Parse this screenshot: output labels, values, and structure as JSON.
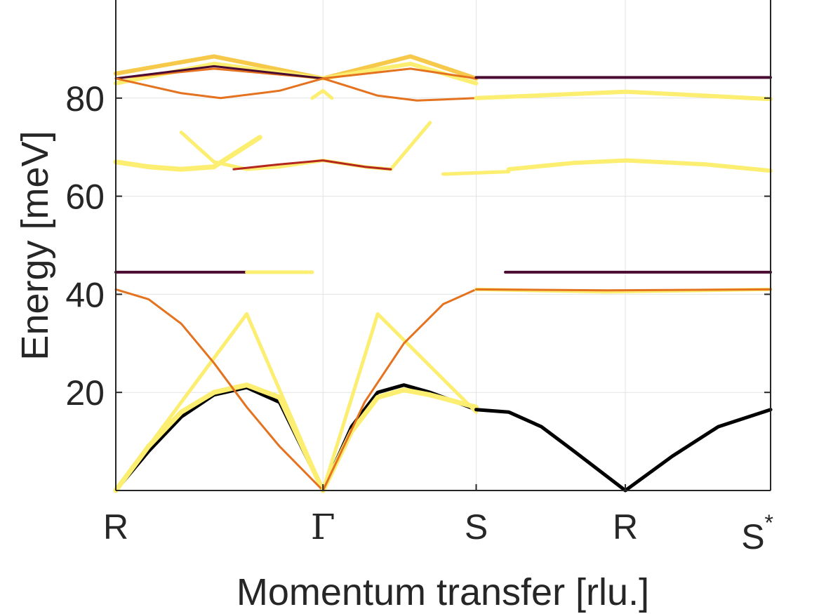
{
  "chart_data": {
    "type": "line",
    "title": "",
    "xlabel": "Momentum transfer [rlu.]",
    "ylabel": "Energy [meV]",
    "xlim": [
      0,
      1
    ],
    "ylim": [
      0,
      100
    ],
    "grid": true,
    "legend": "none",
    "colormap": [
      "#fdfd9a",
      "#f8d040",
      "#f07a1a",
      "#b5261f",
      "#4a0a32",
      "#000000"
    ],
    "x_ticks": [
      {
        "pos": 0,
        "label": "R"
      },
      {
        "pos": 0.3164,
        "label": "Γ"
      },
      {
        "pos": 0.5504,
        "label": "S"
      },
      {
        "pos": 0.7782,
        "label": "R"
      },
      {
        "pos": 1,
        "label": "S*"
      }
    ],
    "y_ticks": [
      {
        "value": 20,
        "label": "20"
      },
      {
        "value": 40,
        "label": "40"
      },
      {
        "value": 60,
        "label": "60"
      },
      {
        "value": 80,
        "label": "80"
      }
    ],
    "series": [
      {
        "color": "#000000",
        "width": 5,
        "x": [
          0,
          0.05,
          0.1,
          0.15,
          0.2,
          0.25,
          0.3164
        ],
        "y": [
          0,
          8,
          15,
          19.5,
          21,
          18,
          0
        ]
      },
      {
        "color": "#fbee70",
        "width": 7,
        "x": [
          0,
          0.05,
          0.1,
          0.15,
          0.2,
          0.25,
          0.3164
        ],
        "y": [
          0,
          9,
          16,
          20,
          21.5,
          19,
          0
        ]
      },
      {
        "color": "#fbee70",
        "width": 5,
        "x": [
          0,
          0.2,
          0.3164
        ],
        "y": [
          0,
          36,
          0
        ]
      },
      {
        "color": "#e4721f",
        "width": 3,
        "x": [
          0,
          0.05,
          0.1,
          0.15,
          0.2,
          0.25,
          0.3164
        ],
        "y": [
          41,
          39,
          34,
          26,
          17,
          9,
          0
        ]
      },
      {
        "color": "#000000",
        "width": 5,
        "x": [
          0.3164,
          0.36,
          0.4,
          0.44,
          0.48,
          0.5504
        ],
        "y": [
          0,
          13,
          20,
          21.5,
          20,
          16.5
        ]
      },
      {
        "color": "#fbee70",
        "width": 7,
        "x": [
          0.3164,
          0.36,
          0.4,
          0.44,
          0.48,
          0.5504
        ],
        "y": [
          0,
          12,
          19,
          20.5,
          19.5,
          17
        ]
      },
      {
        "color": "#fbee70",
        "width": 5,
        "x": [
          0.3164,
          0.4,
          0.5504
        ],
        "y": [
          0,
          36,
          16
        ]
      },
      {
        "color": "#e4721f",
        "width": 3,
        "x": [
          0.3164,
          0.38,
          0.44,
          0.5,
          0.5504
        ],
        "y": [
          0,
          18,
          30,
          38,
          41
        ]
      },
      {
        "color": "#000000",
        "width": 5,
        "x": [
          0.5504,
          0.6,
          0.65,
          0.7,
          0.7782,
          0.85,
          0.92,
          1
        ],
        "y": [
          16.5,
          16,
          13,
          8,
          0,
          7,
          13,
          16.5
        ]
      },
      {
        "color": "#4a0a32",
        "width": 4,
        "x": [
          0.595,
          1
        ],
        "y": [
          44.5,
          44.5
        ]
      },
      {
        "color": "#fbee70",
        "width": 5,
        "x": [
          0.5504,
          0.75,
          1
        ],
        "y": [
          41,
          40.5,
          41
        ]
      },
      {
        "color": "#e4721f",
        "width": 3,
        "x": [
          0.5504,
          0.75,
          1
        ],
        "y": [
          41,
          40.8,
          41
        ]
      },
      {
        "color": "#4a0a32",
        "width": 4,
        "x": [
          0,
          0.2
        ],
        "y": [
          44.5,
          44.5
        ]
      },
      {
        "color": "#fbee70",
        "width": 5,
        "x": [
          0.2,
          0.3
        ],
        "y": [
          44.5,
          44.5
        ]
      },
      {
        "color": "#fbee70",
        "width": 7,
        "x": [
          0,
          0.05,
          0.1,
          0.15,
          0.22
        ],
        "y": [
          67,
          66,
          65.5,
          66,
          72
        ]
      },
      {
        "color": "#fbee70",
        "width": 5,
        "x": [
          0.1,
          0.15,
          0.2,
          0.25,
          0.3164,
          0.38,
          0.42,
          0.48
        ],
        "y": [
          73,
          67,
          65.5,
          66,
          67.3,
          66,
          65.5,
          75
        ]
      },
      {
        "color": "#b5261f",
        "width": 3,
        "x": [
          0.18,
          0.25,
          0.3164,
          0.38,
          0.42
        ],
        "y": [
          65.5,
          66.5,
          67.3,
          66,
          65.5
        ]
      },
      {
        "color": "#fbee70",
        "width": 5,
        "x": [
          0.5,
          0.6
        ],
        "y": [
          64.5,
          65
        ]
      },
      {
        "color": "#fbee70",
        "width": 6,
        "x": [
          0.6,
          0.7,
          0.78,
          0.9,
          1
        ],
        "y": [
          65.5,
          66.8,
          67.3,
          66.5,
          65.2
        ]
      },
      {
        "color": "#f7c94a",
        "width": 6,
        "x": [
          0,
          0.15,
          0.3164,
          0.45,
          0.5504
        ],
        "y": [
          85,
          88.5,
          84,
          88.5,
          84
        ]
      },
      {
        "color": "#fbee70",
        "width": 6,
        "x": [
          0,
          0.15,
          0.3164,
          0.45,
          0.5504
        ],
        "y": [
          83,
          87,
          84,
          87,
          83
        ]
      },
      {
        "color": "#e4721f",
        "width": 3,
        "x": [
          0,
          0.15,
          0.3164,
          0.45,
          0.5504
        ],
        "y": [
          84,
          86,
          84,
          86,
          84
        ]
      },
      {
        "color": "#4a0a32",
        "width": 3,
        "x": [
          0,
          0.15,
          0.3164
        ],
        "y": [
          84,
          86.5,
          84
        ]
      },
      {
        "color": "#e4721f",
        "width": 3,
        "x": [
          0,
          0.1,
          0.16,
          0.25,
          0.3164,
          0.4,
          0.46,
          0.5504
        ],
        "y": [
          84,
          81,
          80,
          81.5,
          84,
          80.5,
          79.5,
          80
        ]
      },
      {
        "color": "#fbee70",
        "width": 6,
        "x": [
          0.5504,
          0.78,
          1
        ],
        "y": [
          80,
          81.3,
          79.8
        ]
      },
      {
        "color": "#fbee70",
        "width": 5,
        "x": [
          0.3,
          0.3164,
          0.33
        ],
        "y": [
          80,
          81.5,
          80
        ]
      },
      {
        "color": "#4a0a32",
        "width": 4,
        "x": [
          0.5504,
          1
        ],
        "y": [
          84.2,
          84.2
        ]
      }
    ]
  }
}
